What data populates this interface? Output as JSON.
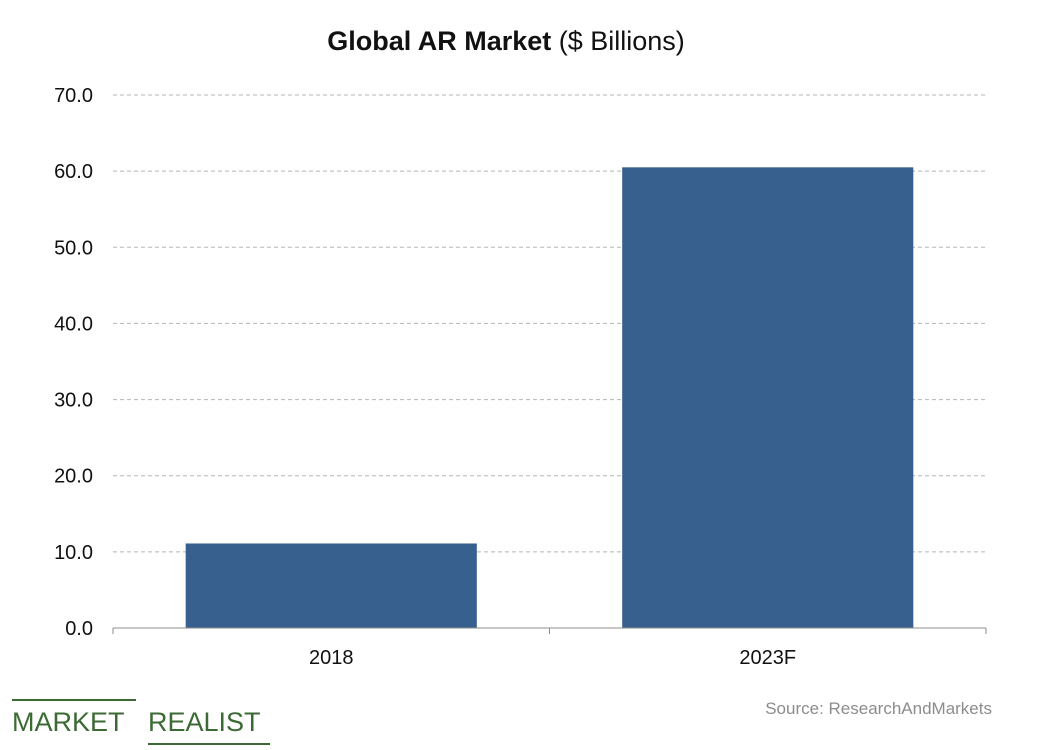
{
  "title_bold": "Global AR Market",
  "title_rest": " ($ Billions)",
  "source": "Source: ResearchAndMarkets",
  "logo": {
    "word1": "MARKET",
    "word2": "REALIST"
  },
  "colors": {
    "bar": "#37608f",
    "grid": "#b5b5b5",
    "axis": "#8c8c8c",
    "text": "#111111",
    "logo": "#3c6a34"
  },
  "chart_data": {
    "type": "bar",
    "categories": [
      "2018",
      "2023F"
    ],
    "values": [
      11.1,
      60.5
    ],
    "ylim": [
      0,
      70
    ],
    "yticks": [
      "0.0",
      "10.0",
      "20.0",
      "30.0",
      "40.0",
      "50.0",
      "60.0",
      "70.0"
    ],
    "ytick_values": [
      0,
      10,
      20,
      30,
      40,
      50,
      60,
      70
    ],
    "grid": true,
    "legend": "none"
  }
}
